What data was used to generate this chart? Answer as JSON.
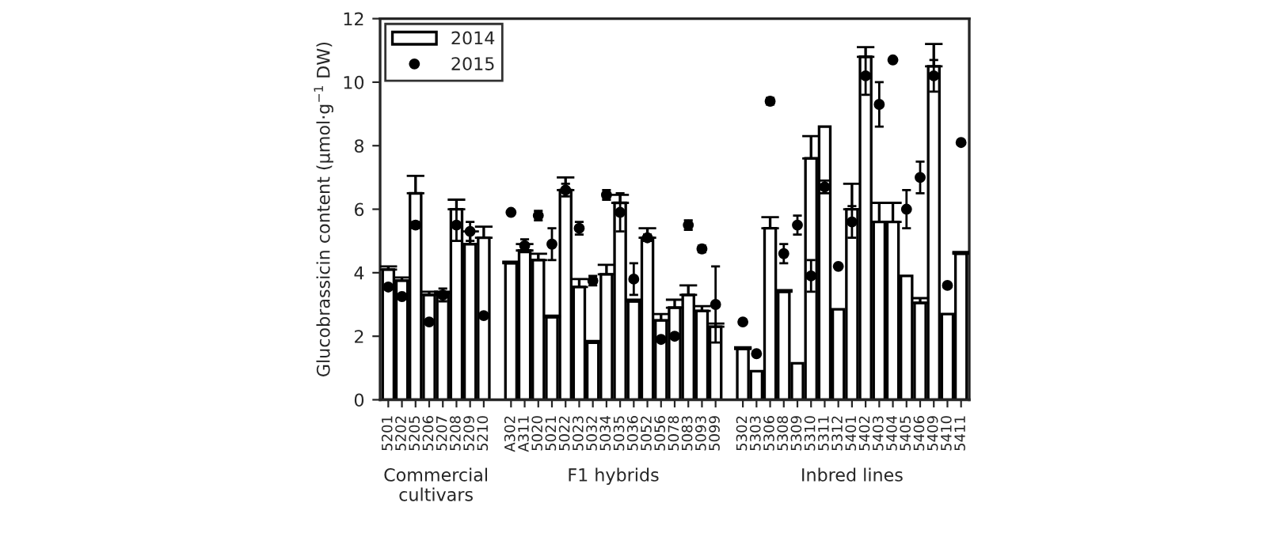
{
  "chart_data": {
    "type": "bar",
    "ylabel": "Glucobrassicin content (μmol·g$^{−1}$ DW)",
    "categories": [
      "5201",
      "5202",
      "5205",
      "5206",
      "5207",
      "5208",
      "5209",
      "5210",
      null,
      "A302",
      "A311",
      "5020",
      "5021",
      "5022",
      "5023",
      "5032",
      "5034",
      "5035",
      "5036",
      "5052",
      "5056",
      "5078",
      "5083",
      "5093",
      "5099",
      null,
      "5302",
      "5303",
      "5306",
      "5308",
      "5309",
      "5310",
      "5311",
      "5312",
      "5401",
      "5402",
      "5403",
      "5404",
      "5405",
      "5406",
      "5409",
      "5410",
      "5411"
    ],
    "series": [
      {
        "name": "2014",
        "color": "#ffffff",
        "values": [
          4.1,
          3.75,
          6.5,
          3.3,
          3.35,
          6.0,
          4.9,
          5.1,
          null,
          4.3,
          4.7,
          4.4,
          2.6,
          6.6,
          3.55,
          1.8,
          3.95,
          6.2,
          3.1,
          5.1,
          2.5,
          2.9,
          3.3,
          2.8,
          2.3,
          null,
          1.6,
          0.9,
          5.4,
          3.4,
          1.15,
          7.6,
          8.6,
          2.85,
          6.0,
          10.8,
          5.6,
          5.6,
          3.9,
          3.05,
          10.5,
          2.7,
          4.6
        ],
        "errors": [
          [
            4.1,
            4.2
          ],
          [
            3.75,
            3.85
          ],
          [
            6.5,
            7.05
          ],
          [
            3.3,
            3.4
          ],
          [
            3.35,
            3.4
          ],
          [
            6.0,
            6.3
          ],
          [
            4.9,
            5.3
          ],
          [
            5.1,
            5.45
          ],
          null,
          [
            4.3,
            4.35
          ],
          [
            4.7,
            4.9
          ],
          [
            4.4,
            4.6
          ],
          [
            2.6,
            2.65
          ],
          [
            6.6,
            7.0
          ],
          [
            3.55,
            3.8
          ],
          [
            1.8,
            1.85
          ],
          [
            3.95,
            4.25
          ],
          [
            6.2,
            6.45
          ],
          [
            3.1,
            3.15
          ],
          [
            5.1,
            5.4
          ],
          [
            2.5,
            2.7
          ],
          [
            2.9,
            3.15
          ],
          [
            3.3,
            3.6
          ],
          [
            2.8,
            2.95
          ],
          [
            2.3,
            2.4
          ],
          null,
          [
            1.6,
            1.65
          ],
          null,
          [
            5.4,
            5.75
          ],
          [
            3.4,
            3.45
          ],
          null,
          [
            7.6,
            8.3
          ],
          null,
          null,
          [
            6.0,
            6.8
          ],
          [
            10.8,
            11.1
          ],
          [
            5.6,
            6.2
          ],
          [
            5.6,
            6.2
          ],
          null,
          [
            3.05,
            3.2
          ],
          [
            10.5,
            11.2
          ],
          null,
          [
            4.6,
            4.65
          ]
        ]
      },
      {
        "name": "2015",
        "type": "scatter",
        "color": "#000000",
        "values": [
          3.55,
          3.25,
          5.5,
          2.45,
          3.3,
          5.5,
          5.3,
          2.65,
          null,
          5.9,
          4.85,
          5.8,
          4.9,
          6.6,
          5.4,
          3.75,
          6.45,
          5.9,
          3.8,
          5.1,
          1.9,
          2.0,
          5.5,
          4.75,
          3.0,
          null,
          2.45,
          1.45,
          9.4,
          4.6,
          5.5,
          3.9,
          6.7,
          4.2,
          5.6,
          10.2,
          9.3,
          10.7,
          6.0,
          7.0,
          10.2,
          3.6,
          8.1
        ],
        "errors": [
          null,
          null,
          0.1,
          null,
          0.2,
          0.5,
          0.3,
          null,
          null,
          null,
          0.2,
          0.15,
          0.5,
          0.2,
          0.2,
          0.15,
          0.15,
          0.6,
          0.5,
          0.1,
          null,
          null,
          0.15,
          0.1,
          1.2,
          null,
          null,
          null,
          0.1,
          0.3,
          0.3,
          0.5,
          0.2,
          null,
          0.5,
          0.6,
          0.7,
          null,
          0.6,
          0.5,
          0.5,
          null,
          null
        ]
      }
    ],
    "ylim": [
      0,
      12
    ],
    "yticks": [
      0,
      2,
      4,
      6,
      8,
      10,
      12
    ],
    "grid": false,
    "legend": "top left",
    "marker": "circle",
    "annotations": [
      "Commercial\ncultivars",
      "F1 hybrids",
      "Inbred lines"
    ]
  }
}
